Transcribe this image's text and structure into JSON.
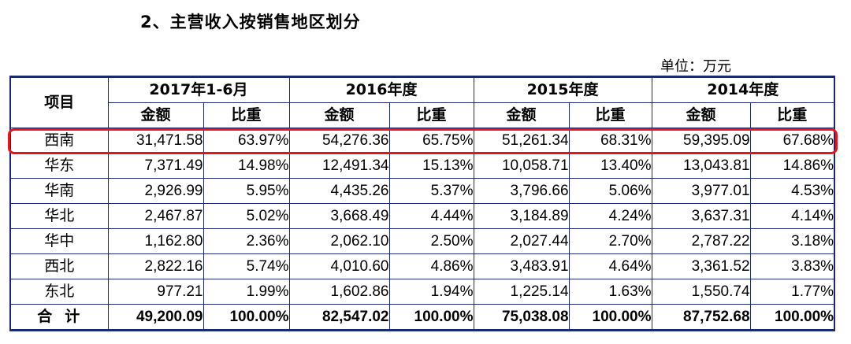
{
  "heading": "2、主营收入按销售地区划分",
  "unit": "单位：万元",
  "table": {
    "item_header": "项目",
    "periods": [
      "2017年1-6月",
      "2016年度",
      "2015年度",
      "2014年度"
    ],
    "sub_amount": "金额",
    "sub_ratio": "比重",
    "rows": [
      {
        "region": "西南",
        "values": [
          "31,471.58",
          "63.97%",
          "54,276.36",
          "65.75%",
          "51,261.34",
          "68.31%",
          "59,395.09",
          "67.68%"
        ]
      },
      {
        "region": "华东",
        "values": [
          "7,371.49",
          "14.98%",
          "12,491.34",
          "15.13%",
          "10,058.71",
          "13.40%",
          "13,043.81",
          "14.86%"
        ]
      },
      {
        "region": "华南",
        "values": [
          "2,926.99",
          "5.95%",
          "4,435.26",
          "5.37%",
          "3,796.66",
          "5.06%",
          "3,977.01",
          "4.53%"
        ]
      },
      {
        "region": "华北",
        "values": [
          "2,467.87",
          "5.02%",
          "3,668.49",
          "4.44%",
          "3,184.89",
          "4.24%",
          "3,637.31",
          "4.14%"
        ]
      },
      {
        "region": "华中",
        "values": [
          "1,162.80",
          "2.36%",
          "2,062.10",
          "2.50%",
          "2,027.44",
          "2.70%",
          "2,787.22",
          "3.18%"
        ]
      },
      {
        "region": "西北",
        "values": [
          "2,822.16",
          "5.74%",
          "4,010.60",
          "4.86%",
          "3,483.91",
          "4.64%",
          "3,361.52",
          "3.83%"
        ]
      },
      {
        "region": "东北",
        "values": [
          "977.21",
          "1.99%",
          "1,602.86",
          "1.94%",
          "1,225.14",
          "1.63%",
          "1,550.74",
          "1.77%"
        ]
      }
    ],
    "total": {
      "region": "合计",
      "values": [
        "49,200.09",
        "100.00%",
        "82,547.02",
        "100.00%",
        "75,038.08",
        "100.00%",
        "87,752.68",
        "100.00%"
      ]
    }
  },
  "highlight_color": "#e8141b",
  "border_color": "#1a2a6e"
}
